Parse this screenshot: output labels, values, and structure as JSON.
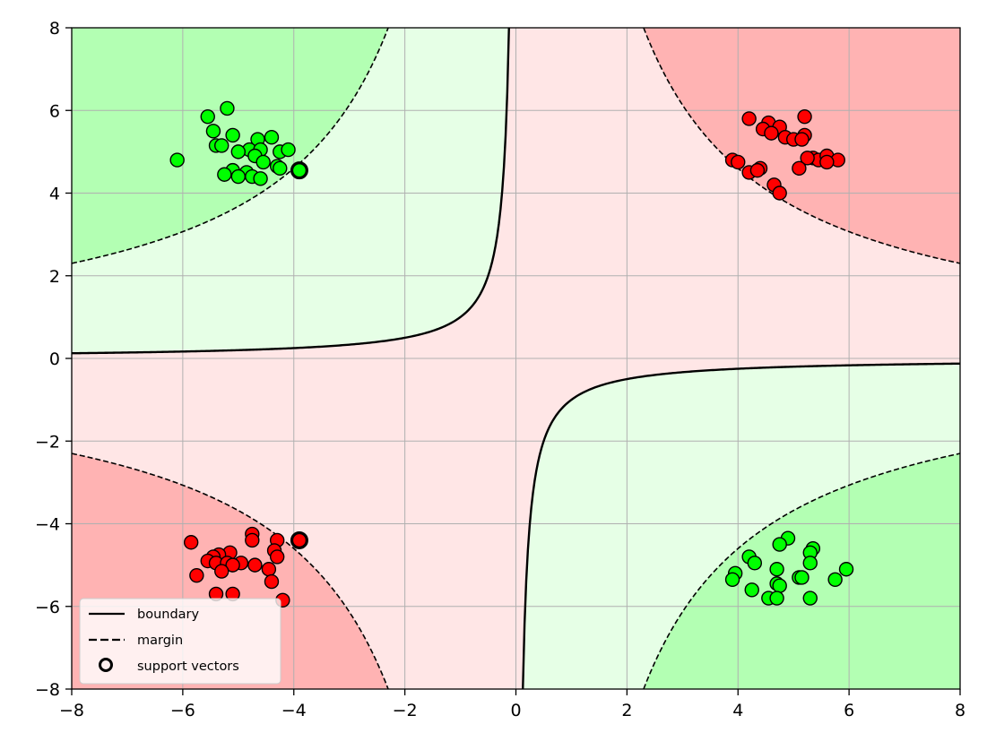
{
  "chart_data": {
    "type": "scatter",
    "title": "",
    "xlabel": "",
    "ylabel": "",
    "xlim": [
      -8,
      8
    ],
    "ylim": [
      -8,
      8
    ],
    "xticks": [
      -8,
      -6,
      -4,
      -2,
      0,
      2,
      4,
      6,
      8
    ],
    "yticks": [
      -8,
      -6,
      -4,
      -2,
      0,
      2,
      4,
      6,
      8
    ],
    "xtick_labels": [
      "−8",
      "−6",
      "−4",
      "−2",
      "0",
      "2",
      "4",
      "6",
      "8"
    ],
    "ytick_labels": [
      "−8",
      "−6",
      "−4",
      "−2",
      "0",
      "2",
      "4",
      "6",
      "8"
    ],
    "grid": true,
    "legend_position": "lower-left",
    "decision_function": "f(x, y) = -x * y / 8; boundary at f = 0, margins at f = ±1",
    "region_colors": {
      "red_outer": "#ffb3b3",
      "red_inner": "#ffe6e6",
      "green_inner": "#e6ffe6",
      "green_outer": "#b3ffb3"
    },
    "colors": {
      "red_points": "#ff0000",
      "green_points": "#00ff00",
      "edge": "#000000"
    },
    "legend": {
      "boundary": "boundary",
      "margin": "margin",
      "support_vectors": "support vectors"
    },
    "series": [
      {
        "name": "",
        "color": "#00ff00",
        "points": [
          [
            -5.2,
            6.05
          ],
          [
            -5.55,
            5.85
          ],
          [
            -5.45,
            5.5
          ],
          [
            -5.1,
            5.4
          ],
          [
            -4.4,
            5.35
          ],
          [
            -4.65,
            5.3
          ],
          [
            -5.4,
            5.15
          ],
          [
            -5.3,
            5.15
          ],
          [
            -4.8,
            5.05
          ],
          [
            -5.0,
            5.0
          ],
          [
            -4.6,
            5.05
          ],
          [
            -4.25,
            5.0
          ],
          [
            -4.1,
            5.05
          ],
          [
            -6.1,
            4.8
          ],
          [
            -4.7,
            4.9
          ],
          [
            -4.55,
            4.75
          ],
          [
            -4.3,
            4.65
          ],
          [
            -5.1,
            4.55
          ],
          [
            -4.25,
            4.6
          ],
          [
            -4.85,
            4.5
          ],
          [
            -5.25,
            4.45
          ],
          [
            -5.0,
            4.4
          ],
          [
            -4.75,
            4.4
          ],
          [
            -4.6,
            4.35
          ],
          [
            -3.9,
            4.55
          ],
          [
            4.9,
            -4.35
          ],
          [
            4.75,
            -4.5
          ],
          [
            5.35,
            -4.6
          ],
          [
            5.3,
            -4.7
          ],
          [
            4.2,
            -4.8
          ],
          [
            4.3,
            -4.95
          ],
          [
            5.3,
            -4.95
          ],
          [
            4.7,
            -5.1
          ],
          [
            5.95,
            -5.1
          ],
          [
            3.95,
            -5.2
          ],
          [
            3.9,
            -5.35
          ],
          [
            5.1,
            -5.3
          ],
          [
            5.15,
            -5.3
          ],
          [
            5.75,
            -5.35
          ],
          [
            4.7,
            -5.45
          ],
          [
            4.75,
            -5.5
          ],
          [
            4.25,
            -5.6
          ],
          [
            4.55,
            -5.8
          ],
          [
            4.7,
            -5.8
          ],
          [
            5.3,
            -5.8
          ]
        ]
      },
      {
        "name": "",
        "color": "#ff0000",
        "points": [
          [
            5.2,
            5.85
          ],
          [
            4.2,
            5.8
          ],
          [
            4.55,
            5.7
          ],
          [
            4.75,
            5.6
          ],
          [
            4.45,
            5.55
          ],
          [
            4.6,
            5.45
          ],
          [
            4.85,
            5.35
          ],
          [
            5.2,
            5.4
          ],
          [
            5.0,
            5.3
          ],
          [
            5.15,
            5.3
          ],
          [
            5.35,
            4.85
          ],
          [
            5.45,
            4.8
          ],
          [
            5.6,
            4.9
          ],
          [
            5.8,
            4.8
          ],
          [
            5.6,
            4.75
          ],
          [
            5.25,
            4.85
          ],
          [
            3.9,
            4.8
          ],
          [
            4.0,
            4.75
          ],
          [
            4.4,
            4.6
          ],
          [
            4.2,
            4.5
          ],
          [
            5.1,
            4.6
          ],
          [
            4.35,
            4.55
          ],
          [
            4.65,
            4.2
          ],
          [
            4.75,
            4.0
          ],
          [
            -4.75,
            -4.25
          ],
          [
            -5.85,
            -4.45
          ],
          [
            -4.3,
            -4.4
          ],
          [
            -4.75,
            -4.4
          ],
          [
            -4.35,
            -4.65
          ],
          [
            -4.3,
            -4.8
          ],
          [
            -5.15,
            -4.7
          ],
          [
            -5.35,
            -4.75
          ],
          [
            -5.45,
            -4.8
          ],
          [
            -5.55,
            -4.9
          ],
          [
            -5.4,
            -4.95
          ],
          [
            -5.2,
            -4.95
          ],
          [
            -4.95,
            -4.95
          ],
          [
            -4.7,
            -5.0
          ],
          [
            -5.1,
            -5.0
          ],
          [
            -4.45,
            -5.1
          ],
          [
            -5.3,
            -5.15
          ],
          [
            -5.75,
            -5.25
          ],
          [
            -4.4,
            -5.4
          ],
          [
            -5.4,
            -5.7
          ],
          [
            -5.1,
            -5.7
          ],
          [
            -4.2,
            -5.85
          ],
          [
            -3.9,
            -4.4
          ]
        ]
      }
    ],
    "support_vectors": [
      [
        -3.9,
        4.55
      ],
      [
        -3.9,
        -4.4
      ]
    ]
  }
}
